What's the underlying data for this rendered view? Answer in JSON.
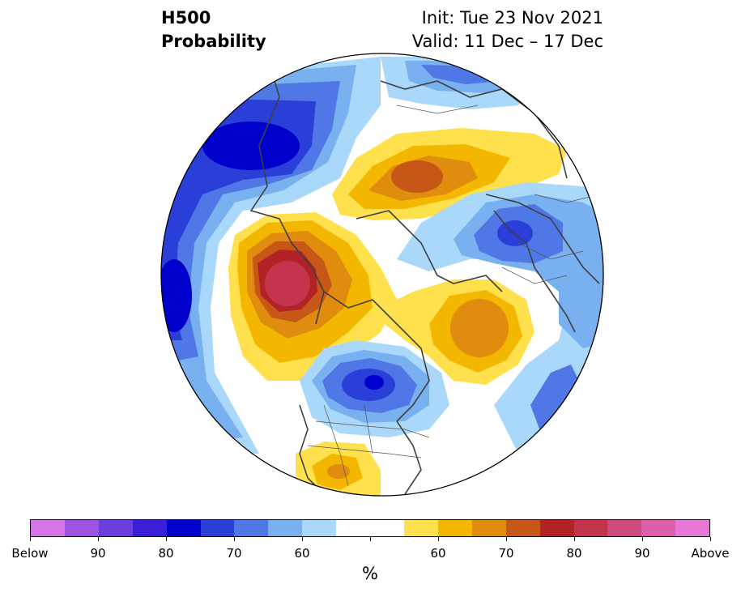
{
  "header": {
    "left_line1": "H500",
    "left_line2": "Probability",
    "right_line1": "Init: Tue 23 Nov 2021",
    "right_line2": "Valid: 11 Dec – 17 Dec"
  },
  "colorbar": {
    "colors": [
      "#d575e8",
      "#9e52e0",
      "#6b3fde",
      "#3b1fd8",
      "#0000cc",
      "#2a3ed8",
      "#4f77e6",
      "#79b0f0",
      "#aad8fb",
      "#ffffff",
      "#ffffff",
      "#ffe04d",
      "#f3b700",
      "#e08c0e",
      "#c75716",
      "#b32226",
      "#c2354c",
      "#cf4a7c",
      "#dc5fa8",
      "#e878d8"
    ],
    "tick_labels": [
      "Below",
      "90",
      "80",
      "70",
      "60",
      "",
      "60",
      "70",
      "80",
      "90",
      "Above"
    ],
    "unit": "%"
  },
  "map": {
    "projection": "north-polar-stereographic",
    "field": "H500 probability anomaly",
    "features": [
      {
        "name": "negative anomaly over Siberia/Russia",
        "level": "70-80% below"
      },
      {
        "name": "positive anomaly over Alaska",
        "level": "80-85% above"
      },
      {
        "name": "positive anomaly over Arctic Ocean",
        "level": "70-75% above"
      },
      {
        "name": "negative anomaly over Hudson Bay / Canada",
        "level": "75-80% below"
      },
      {
        "name": "positive anomaly over Greenland",
        "level": "65-70% above"
      },
      {
        "name": "negative anomaly over Scandinavia/Europe",
        "level": "75-80% below"
      },
      {
        "name": "positive anomaly over southern US / Mexico",
        "level": "65% above"
      }
    ]
  }
}
